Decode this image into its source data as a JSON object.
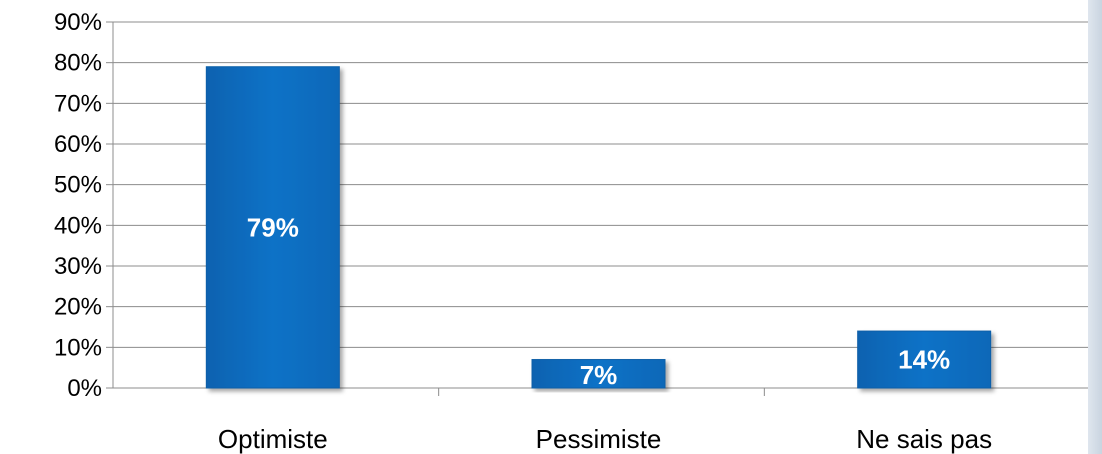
{
  "chart_data": {
    "type": "bar",
    "categories": [
      "Optimiste",
      "Pessimiste",
      "Ne sais pas"
    ],
    "values": [
      79,
      7,
      14
    ],
    "data_labels": [
      "79%",
      "7%",
      "14%"
    ],
    "ylim": [
      0,
      90
    ],
    "yticks": [
      0,
      10,
      20,
      30,
      40,
      50,
      60,
      70,
      80,
      90
    ],
    "ytick_labels": [
      "0%",
      "10%",
      "20%",
      "30%",
      "40%",
      "50%",
      "60%",
      "70%",
      "80%",
      "90%"
    ],
    "grid": true,
    "legend": "none",
    "bar_color": "#0A72C7",
    "bar_edge_color": "#0B5FA8",
    "label_color": "#FFFFFF",
    "grid_color": "#8C8C8C",
    "axis_color": "#8C8C8C",
    "text_color": "#000000"
  }
}
